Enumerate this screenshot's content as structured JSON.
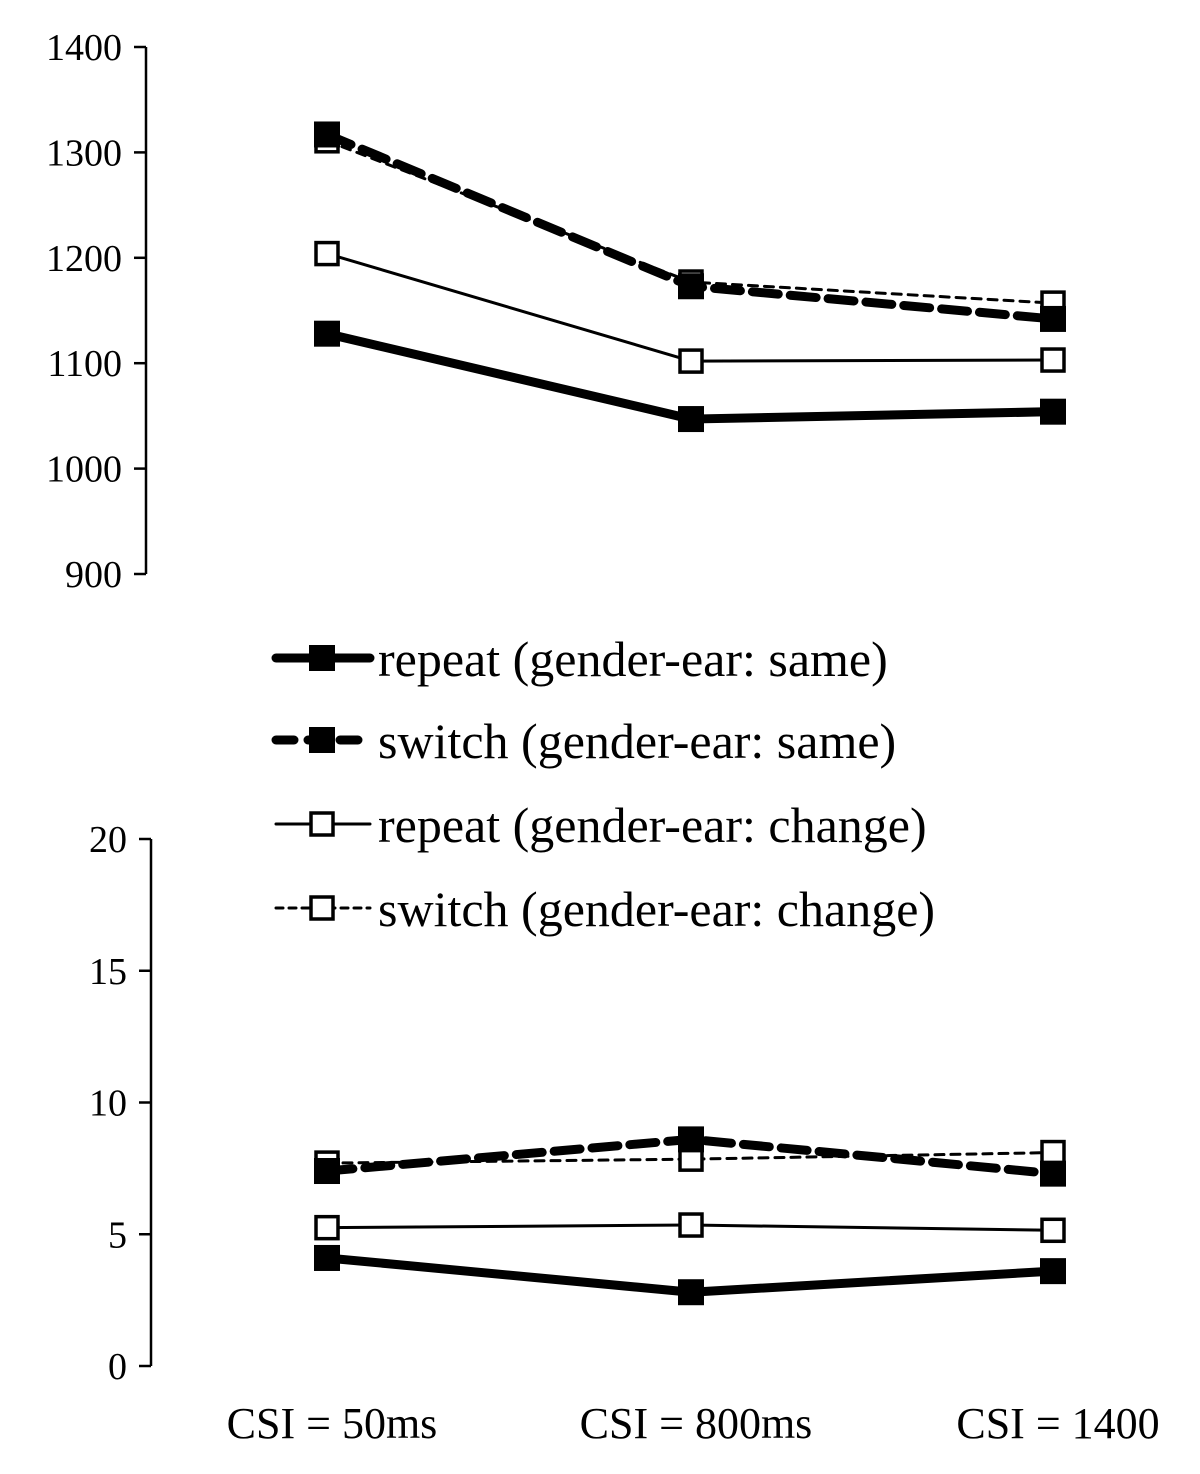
{
  "chart_data": [
    {
      "type": "line",
      "title": "",
      "xlabel": "",
      "ylabel": "",
      "categories": [
        "CSI = 50ms",
        "CSI = 800ms",
        "CSI = 1400"
      ],
      "ylim": [
        900,
        1400
      ],
      "yticks": [
        900,
        1000,
        1100,
        1200,
        1300,
        1400
      ],
      "grid": false,
      "series": [
        {
          "name": "repeat (gender-ear: same)",
          "values": [
            1128,
            1047,
            1054
          ]
        },
        {
          "name": "switch (gender-ear: same)",
          "values": [
            1317,
            1173,
            1142
          ]
        },
        {
          "name": "repeat (gender-ear: change)",
          "values": [
            1204,
            1102,
            1103
          ]
        },
        {
          "name": "switch (gender-ear: change)",
          "values": [
            1311,
            1177,
            1157
          ]
        }
      ]
    },
    {
      "type": "line",
      "title": "",
      "xlabel": "",
      "ylabel": "",
      "categories": [
        "CSI = 50ms",
        "CSI = 800ms",
        "CSI = 1400"
      ],
      "ylim": [
        0,
        20
      ],
      "yticks": [
        0,
        5,
        10,
        15,
        20
      ],
      "grid": false,
      "series": [
        {
          "name": "repeat (gender-ear: same)",
          "values": [
            4.1,
            2.8,
            3.6
          ]
        },
        {
          "name": "switch (gender-ear: same)",
          "values": [
            7.4,
            8.6,
            7.3
          ]
        },
        {
          "name": "repeat (gender-ear: change)",
          "values": [
            5.25,
            5.35,
            5.15
          ]
        },
        {
          "name": "switch (gender-ear: change)",
          "values": [
            7.7,
            7.85,
            8.1
          ]
        }
      ]
    }
  ],
  "legend": {
    "position": "between-panels",
    "entries": [
      {
        "label": "repeat (gender-ear: same)",
        "marker": "filled-square",
        "line": "thick-solid"
      },
      {
        "label": "switch (gender-ear: same)",
        "marker": "filled-square",
        "line": "thick-dashed"
      },
      {
        "label": "repeat (gender-ear: change)",
        "marker": "open-square",
        "line": "thin-solid"
      },
      {
        "label": "switch (gender-ear: change)",
        "marker": "open-square",
        "line": "thin-dashed"
      }
    ]
  },
  "x_axis": {
    "labels": [
      "CSI = 50ms",
      "CSI = 800ms",
      "CSI = 1400"
    ]
  },
  "colors": {
    "ink": "#000000",
    "background": "#ffffff"
  }
}
